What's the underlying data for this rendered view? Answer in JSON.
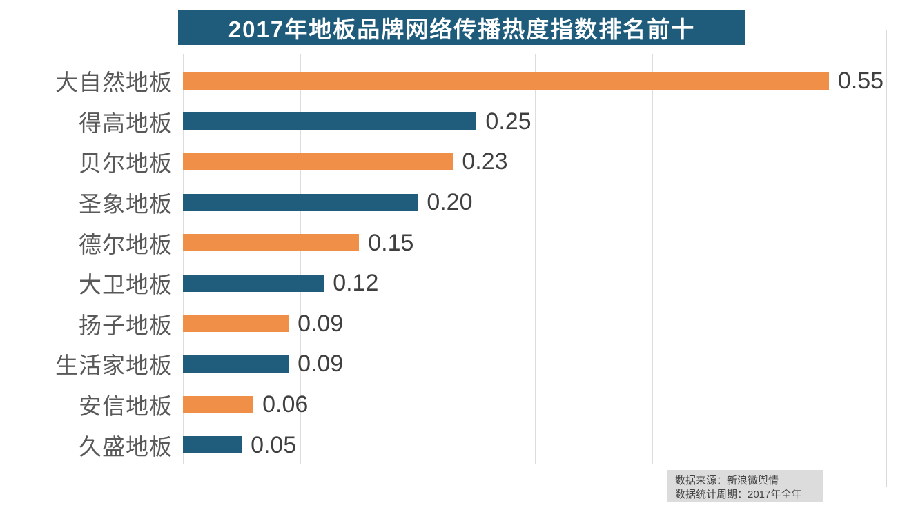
{
  "title": "2017年地板品牌网络传播热度指数排名前十",
  "source": {
    "line1": "数据来源：新浪微舆情",
    "line2": "数据统计周期：2017年全年"
  },
  "colors": {
    "banner_bg": "#1f5b7b",
    "bar_orange": "#f09048",
    "bar_blue": "#205d7d",
    "gridline": "#dddddd",
    "frame_border": "#d9d9d9",
    "category_label": "#595959",
    "value_label": "#3f3f3f",
    "source_bg": "#dcdcdc"
  },
  "chart_data": {
    "type": "bar",
    "orientation": "horizontal",
    "title": "2017年地板品牌网络传播热度指数排名前十",
    "categories": [
      "大自然地板",
      "得高地板",
      "贝尔地板",
      "圣象地板",
      "德尔地板",
      "大卫地板",
      "扬子地板",
      "生活家地板",
      "安信地板",
      "久盛地板"
    ],
    "values": [
      0.55,
      0.25,
      0.23,
      0.2,
      0.15,
      0.12,
      0.09,
      0.09,
      0.06,
      0.05
    ],
    "value_labels": [
      "0.55",
      "0.25",
      "0.23",
      "0.20",
      "0.15",
      "0.12",
      "0.09",
      "0.09",
      "0.06",
      "0.05"
    ],
    "bar_color_pattern": [
      "#f09048",
      "#205d7d"
    ],
    "xlabel": "",
    "ylabel": "",
    "xlim": [
      0,
      0.6
    ],
    "gridline_values": [
      0,
      0.1,
      0.2,
      0.3,
      0.4,
      0.5,
      0.6
    ],
    "grid": "vertical-only",
    "legend": "none",
    "value_labels_position": "end-of-bar"
  }
}
